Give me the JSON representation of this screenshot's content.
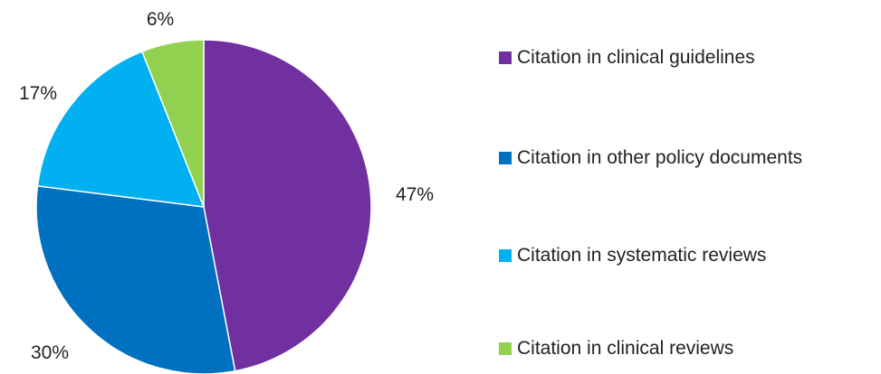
{
  "chart_data": {
    "type": "pie",
    "categories": [
      "Citation in clinical guidelines",
      "Citation in other policy documents",
      "Citation in systematic reviews",
      "Citation in clinical reviews"
    ],
    "values": [
      47,
      30,
      17,
      6
    ],
    "labels": [
      "47%",
      "30%",
      "17%",
      "6%"
    ],
    "colors": [
      "#7030A0",
      "#0070C0",
      "#00B0F0",
      "#92D050"
    ],
    "title": "",
    "legend_position": "right"
  }
}
